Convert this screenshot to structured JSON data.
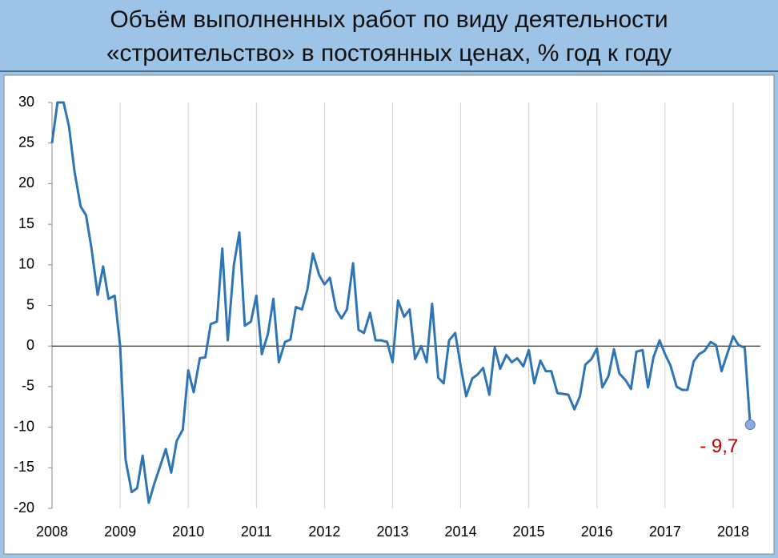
{
  "chart_data": {
    "type": "line",
    "title_lines": [
      "Объём выполненных работ по виду деятельности",
      "«строительство» в постоянных ценах, % год к году"
    ],
    "x": [
      2008.0,
      2008.08,
      2008.17,
      2008.25,
      2008.33,
      2008.42,
      2008.5,
      2008.58,
      2008.67,
      2008.75,
      2008.83,
      2008.92,
      2009.0,
      2009.08,
      2009.17,
      2009.25,
      2009.33,
      2009.42,
      2009.5,
      2009.58,
      2009.67,
      2009.75,
      2009.83,
      2009.92,
      2010.0,
      2010.08,
      2010.17,
      2010.25,
      2010.33,
      2010.42,
      2010.5,
      2010.58,
      2010.67,
      2010.75,
      2010.83,
      2010.92,
      2011.0,
      2011.08,
      2011.17,
      2011.25,
      2011.33,
      2011.42,
      2011.5,
      2011.58,
      2011.67,
      2011.75,
      2011.83,
      2011.92,
      2012.0,
      2012.08,
      2012.17,
      2012.25,
      2012.33,
      2012.42,
      2012.5,
      2012.58,
      2012.67,
      2012.75,
      2012.83,
      2012.92,
      2013.0,
      2013.08,
      2013.17,
      2013.25,
      2013.33,
      2013.42,
      2013.5,
      2013.58,
      2013.67,
      2013.75,
      2013.83,
      2013.92,
      2014.0,
      2014.08,
      2014.17,
      2014.25,
      2014.33,
      2014.42,
      2014.5,
      2014.58,
      2014.67,
      2014.75,
      2014.83,
      2014.92,
      2015.0,
      2015.08,
      2015.17,
      2015.25,
      2015.33,
      2015.42,
      2015.5,
      2015.58,
      2015.67,
      2015.75,
      2015.83,
      2015.92,
      2016.0,
      2016.08,
      2016.17,
      2016.25,
      2016.33,
      2016.42,
      2016.5,
      2016.58,
      2016.67,
      2016.75,
      2016.83,
      2016.92,
      2017.0,
      2017.08,
      2017.17,
      2017.25,
      2017.33,
      2017.42,
      2017.5,
      2017.58,
      2017.67,
      2017.75,
      2017.83,
      2017.92,
      2018.0,
      2018.08,
      2018.17,
      2018.25
    ],
    "series": [
      {
        "color": "#2e75b6",
        "values": [
          25,
          30,
          30,
          27,
          21.5,
          17.2,
          16.1,
          12,
          6.3,
          9.8,
          5.8,
          6.2,
          0,
          -14,
          -18,
          -17.5,
          -13.5,
          -19.3,
          -17,
          -15,
          -12.7,
          -15.6,
          -11.7,
          -10.3,
          -3,
          -5.7,
          -1.5,
          -1.4,
          2.7,
          3,
          12,
          0.7,
          10,
          14,
          2.5,
          3,
          6.2,
          -1,
          1.5,
          5.8,
          -2,
          0.5,
          0.8,
          4.8,
          4.5,
          7,
          11.4,
          8.8,
          7.6,
          8.4,
          4.5,
          3.4,
          4.5,
          10.2,
          2,
          1.6,
          4.1,
          0.7,
          0.7,
          0.5,
          -2,
          5.6,
          3.6,
          4.5,
          -1.6,
          0,
          -2,
          5.2,
          -3.9,
          -4.6,
          0.7,
          1.6,
          -2.5,
          -6.2,
          -4,
          -3.5,
          -2.7,
          -6,
          -0.2,
          -2.8,
          -1.1,
          -2,
          -1.5,
          -2.5,
          -0.5,
          -4.6,
          -1.8,
          -3.1,
          -3.1,
          -5.8,
          -5.9,
          -6,
          -7.8,
          -6.2,
          -2.3,
          -1.6,
          -0.3,
          -5.1,
          -3.7,
          -0.4,
          -3.4,
          -4.2,
          -5.3,
          -0.7,
          -0.5,
          -5.1,
          -1.4,
          0.7,
          -1,
          -2.4,
          -5,
          -5.4,
          -5.4,
          -1.9,
          -1,
          -0.6,
          0.5,
          0.1,
          -3.1,
          -0.8,
          1.2,
          0.1,
          -0.2,
          -9.7
        ]
      }
    ],
    "xlim": [
      2008,
      2018.4
    ],
    "xticks": [
      2008,
      2009,
      2010,
      2011,
      2012,
      2013,
      2014,
      2015,
      2016,
      2017,
      2018
    ],
    "ylim": [
      -20,
      30
    ],
    "yticks": [
      -20,
      -15,
      -10,
      -5,
      0,
      5,
      10,
      15,
      20,
      25,
      30
    ],
    "grid": "x",
    "annotation": "- 9,7",
    "annotation_color": "#c00000"
  }
}
